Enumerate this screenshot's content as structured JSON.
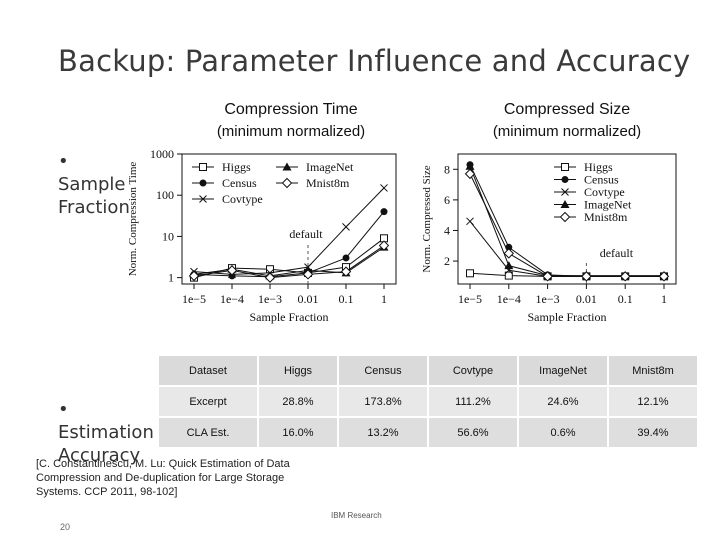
{
  "slide": {
    "title": "Backup: Parameter Influence and Accuracy",
    "bullets": [
      "• Sample Fraction",
      "• Estimation Accuracy"
    ],
    "citation": "[C. Constantinescu, M. Lu: Quick Estimation of Data Compression and De-duplication for Large Storage Systems. CCP 2011, 98-102]",
    "footer": "IBM Research",
    "page_number": "20"
  },
  "chart_data": [
    {
      "type": "line",
      "title": "Compression Time",
      "subtitle": "(minimum normalized)",
      "xlabel": "Sample Fraction",
      "ylabel": "Norm. Compression Time",
      "xticks": [
        "1e−5",
        "1e−4",
        "1e−3",
        "0.01",
        "0.1",
        "1"
      ],
      "yticks": [
        "1",
        "10",
        "100",
        "1000"
      ],
      "yscale": "log",
      "ylim": [
        0.7,
        1000
      ],
      "annotation": "default",
      "legend": [
        "Higgs",
        "Census",
        "Covtype",
        "ImageNet",
        "Mnist8m"
      ],
      "series": [
        {
          "name": "Higgs",
          "marker": "square",
          "x": [
            "1e−5",
            "1e−4",
            "1e−3",
            "0.01",
            "0.1",
            "1"
          ],
          "values": [
            1,
            1.7,
            1.6,
            1.3,
            1.8,
            9
          ]
        },
        {
          "name": "Census",
          "marker": "dot",
          "x": [
            "1e−5",
            "1e−4",
            "1e−3",
            "0.01",
            "0.1",
            "1"
          ],
          "values": [
            1.2,
            1.1,
            1.05,
            1.3,
            3,
            40
          ]
        },
        {
          "name": "Covtype",
          "marker": "x",
          "x": [
            "1e−5",
            "1e−4",
            "1e−3",
            "0.01",
            "0.1",
            "1"
          ],
          "values": [
            1.4,
            1.2,
            1.3,
            1.8,
            17,
            150
          ]
        },
        {
          "name": "ImageNet",
          "marker": "triangle",
          "x": [
            "1e−5",
            "1e−4",
            "1e−3",
            "0.01",
            "0.1",
            "1"
          ],
          "values": [
            1.2,
            1.6,
            1.1,
            1.5,
            1.3,
            5.5
          ]
        },
        {
          "name": "Mnist8m",
          "marker": "diamond",
          "x": [
            "1e−5",
            "1e−4",
            "1e−3",
            "0.01",
            "0.1",
            "1"
          ],
          "values": [
            1.1,
            1.5,
            1.0,
            1.2,
            1.4,
            6
          ]
        }
      ]
    },
    {
      "type": "line",
      "title": "Compressed Size",
      "subtitle": "(minimum normalized)",
      "xlabel": "Sample Fraction",
      "ylabel": "Norm. Compressed Size",
      "xticks": [
        "1e−5",
        "1e−4",
        "1e−3",
        "0.01",
        "0.1",
        "1"
      ],
      "yticks": [
        "2",
        "4",
        "6",
        "8"
      ],
      "ylim": [
        0.5,
        9
      ],
      "annotation": "default",
      "legend": [
        "Higgs",
        "Census",
        "Covtype",
        "ImageNet",
        "Mnist8m"
      ],
      "series": [
        {
          "name": "Higgs",
          "marker": "square",
          "x": [
            "1e−5",
            "1e−4",
            "1e−3",
            "0.01",
            "0.1",
            "1"
          ],
          "values": [
            1.2,
            1.05,
            1.0,
            1.0,
            1.0,
            1.0
          ]
        },
        {
          "name": "Census",
          "marker": "dot",
          "x": [
            "1e−5",
            "1e−4",
            "1e−3",
            "0.01",
            "0.1",
            "1"
          ],
          "values": [
            8.3,
            2.9,
            1.1,
            1.0,
            1.0,
            1.0
          ]
        },
        {
          "name": "Covtype",
          "marker": "x",
          "x": [
            "1e−5",
            "1e−4",
            "1e−3",
            "0.01",
            "0.1",
            "1"
          ],
          "values": [
            4.6,
            1.4,
            1.0,
            1.0,
            1.0,
            1.0
          ]
        },
        {
          "name": "ImageNet",
          "marker": "triangle",
          "x": [
            "1e−5",
            "1e−4",
            "1e−3",
            "0.01",
            "0.1",
            "1"
          ],
          "values": [
            8.2,
            1.7,
            1.05,
            1.05,
            1.05,
            1.05
          ]
        },
        {
          "name": "Mnist8m",
          "marker": "diamond",
          "x": [
            "1e−5",
            "1e−4",
            "1e−3",
            "0.01",
            "0.1",
            "1"
          ],
          "values": [
            7.7,
            2.5,
            1.0,
            1.0,
            1.0,
            1.0
          ]
        }
      ]
    },
    {
      "type": "table",
      "columns": [
        "Dataset",
        "Higgs",
        "Census",
        "Covtype",
        "ImageNet",
        "Mnist8m"
      ],
      "rows": [
        [
          "Excerpt",
          "28.8%",
          "173.8%",
          "111.2%",
          "24.6%",
          "12.1%"
        ],
        [
          "CLA Est.",
          "16.0%",
          "13.2%",
          "56.6%",
          "0.6%",
          "39.4%"
        ]
      ]
    }
  ]
}
